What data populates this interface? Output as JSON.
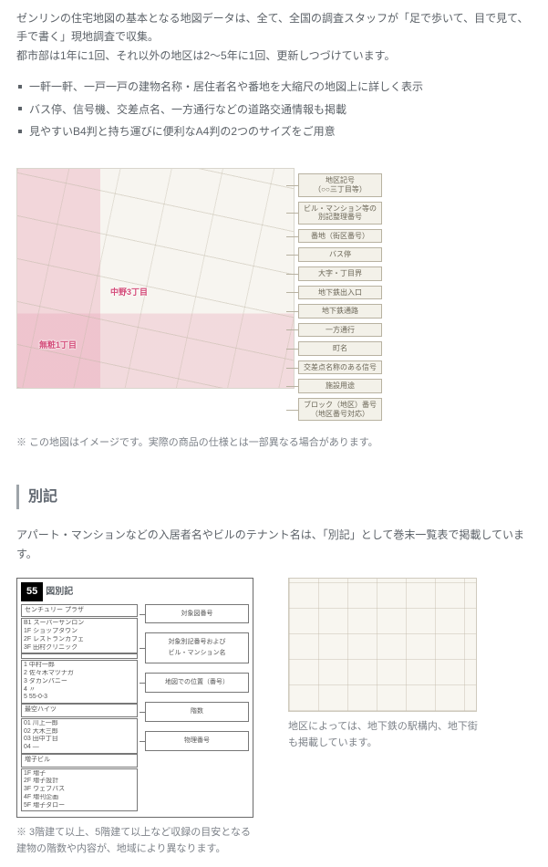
{
  "intro": {
    "p1": "ゼンリンの住宅地図の基本となる地図データは、全て、全国の調査スタッフが「足で歩いて、目で見て、手で書く」現地調査で収集。",
    "p2": "都市部は1年に1回、それ以外の地区は2〜5年に1回、更新しつづけています。"
  },
  "bullets": [
    "一軒一軒、一戸一戸の建物名称・居住者名や番地を大縮尺の地図上に詳しく表示",
    "バス停、信号機、交差点名、一方通行などの道路交通情報も掲載",
    "見やすいB4判と持ち運びに便利なA4判の2つのサイズをご用意"
  ],
  "map": {
    "lbl1": "中野3丁目",
    "lbl2": "無粧1丁目",
    "note": "※ この地図はイメージです。実際の商品の仕様とは一部異なる場合があります。"
  },
  "legend": [
    "地区記号\n（○○三丁目等）",
    "ビル・マンション等の\n別記整理番号",
    "番地（街区番号）",
    "バス停",
    "大字・丁目界",
    "地下鉄出入口",
    "地下鉄通路",
    "一方通行",
    "町名",
    "交差点名称のある信号",
    "施設用途",
    "ブロック（地区）番号\n（地区番号対応）"
  ],
  "bekkisection": {
    "title": "別記",
    "intro": "アパート・マンションなどの入居者名やビルのテナント名は、「別記」として巻末一覧表で掲載しています。"
  },
  "bekki_head": {
    "num": "55",
    "title": "図別記"
  },
  "bekki_blocks": [
    {
      "name": "センチュリー\nプラザ",
      "lines": [
        "B1 スーパーサンロン",
        "1F ショップタウン",
        "2F レストランカフェ",
        "3F 田村クリニック"
      ]
    },
    {
      "name": " ",
      "lines": [
        "1  中村一郎",
        "2  佐々木マツナガ",
        "3  ダカンパニー",
        "4  〃",
        "5  55-0-3"
      ]
    },
    {
      "name": "最空ハイツ",
      "lines": [
        "01 川上一郎",
        "02 大木三郎",
        "03 田中丁目",
        "04 ―"
      ]
    },
    {
      "name": "増子ビル",
      "lines": [
        "1F 増子",
        "2F 増子設計",
        "3F ウェブパス",
        "4F 増刊企画",
        "5F 増子タロー"
      ]
    }
  ],
  "bekki_labels": [
    "対象図番号",
    "対象別記番号および\nビル・マンション名",
    "地図での位置（番号）",
    "階数",
    "物理番号"
  ],
  "captions": {
    "left": "※ 3階建て以上、5階建て以上など収録の目安となる建物の階数や内容が、地域により異なります。",
    "right": "地区によっては、地下鉄の駅構内、地下街も掲載しています。"
  }
}
